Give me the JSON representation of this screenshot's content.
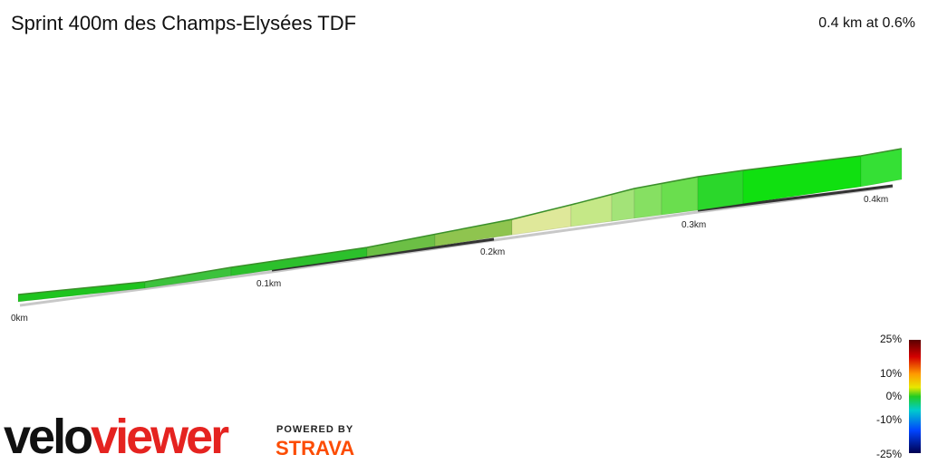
{
  "header": {
    "title": "Sprint 400m des Champs-Elysées TDF",
    "summary": "0.4 km at 0.6%"
  },
  "distance_labels": [
    "0km",
    "0.1km",
    "0.2km",
    "0.3km",
    "0.4km"
  ],
  "gradient_legend": [
    "25%",
    "10%",
    "0%",
    "-10%",
    "-25%"
  ],
  "branding": {
    "logo_left": "velo",
    "logo_right": "viewer",
    "powered_by": "POWERED BY",
    "partner": "STRAVA"
  }
}
